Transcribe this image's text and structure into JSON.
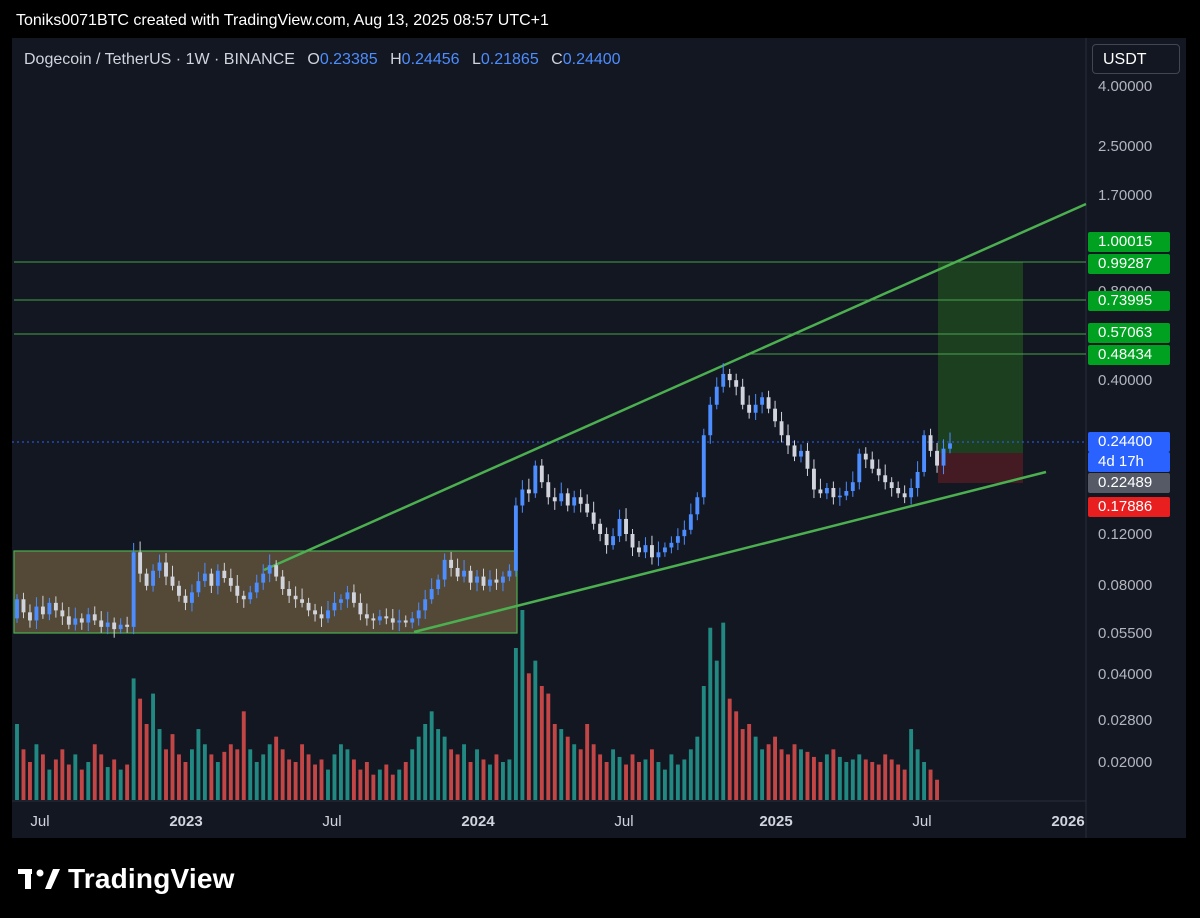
{
  "header": {
    "attribution": "Toniks0071BTC created with TradingView.com, Aug 13, 2025 08:57 UTC+1"
  },
  "legend": {
    "symbol": "Dogecoin / TetherUS · 1W · BINANCE",
    "open_label": "O",
    "open": "0.23385",
    "high_label": "H",
    "high": "0.24456",
    "low_label": "L",
    "low": "0.21865",
    "close_label": "C",
    "close": "0.24400"
  },
  "currency_button": "USDT",
  "brand": {
    "name": "TradingView"
  },
  "colors": {
    "up": "#4c8dff",
    "down": "#d1d4dc",
    "vol_up": "#26a69a",
    "vol_down": "#ef5350",
    "trend": "#4caf50",
    "range_box": "#6b5a3e",
    "target_zone": "#1e4620",
    "stop_zone": "#4a1c24"
  },
  "price_tags": [
    {
      "text": "1.00015",
      "color": "#00a020"
    },
    {
      "text": "0.99287",
      "color": "#00a020"
    },
    {
      "text": "0.73995",
      "color": "#00a020"
    },
    {
      "text": "0.57063",
      "color": "#00a020"
    },
    {
      "text": "0.48434",
      "color": "#00a020"
    },
    {
      "text": "0.24400",
      "color": "#2962ff"
    },
    {
      "text": "4d 17h",
      "color": "#2962ff"
    },
    {
      "text": "0.22489",
      "color": "#555a66"
    },
    {
      "text": "0.17886",
      "color": "#e91e1e"
    }
  ],
  "chart_data": {
    "type": "candlestick",
    "scale": "log",
    "timeframe": "1W",
    "y_tick_labels": [
      "4.00000",
      "2.50000",
      "1.70000",
      "0.80000",
      "0.40000",
      "0.12000",
      "0.08000",
      "0.05500",
      "0.04000",
      "0.02800",
      "0.02000"
    ],
    "x_tick_labels": [
      "Jul",
      "2023",
      "Jul",
      "2024",
      "Jul",
      "2025",
      "Jul",
      "2026"
    ],
    "horizontal_levels": [
      0.99287,
      0.73995,
      0.57063,
      0.48434
    ],
    "current_price": 0.244,
    "entry": 0.22489,
    "stop_loss": 0.17886,
    "target": 0.99287,
    "trendlines": [
      {
        "name": "upper",
        "from": [
          0.092,
          "2023-05"
        ],
        "to": [
          1.6,
          "2026-01"
        ]
      },
      {
        "name": "lower",
        "from": [
          0.056,
          "2023-10"
        ],
        "to": [
          0.2,
          "2025-10"
        ]
      }
    ],
    "range_box": {
      "from": "2022-06",
      "to": "2024-02",
      "high": 0.107,
      "low": 0.056
    },
    "price_path": [
      [
        0.062,
        0.072
      ],
      [
        0.072,
        0.065
      ],
      [
        0.065,
        0.061
      ],
      [
        0.061,
        0.068
      ],
      [
        0.068,
        0.064
      ],
      [
        0.064,
        0.07
      ],
      [
        0.07,
        0.066
      ],
      [
        0.066,
        0.063
      ],
      [
        0.063,
        0.059
      ],
      [
        0.059,
        0.062
      ],
      [
        0.062,
        0.06
      ],
      [
        0.06,
        0.064
      ],
      [
        0.064,
        0.061
      ],
      [
        0.061,
        0.058
      ],
      [
        0.058,
        0.06
      ],
      [
        0.06,
        0.057
      ],
      [
        0.057,
        0.059
      ],
      [
        0.059,
        0.058
      ],
      [
        0.058,
        0.104
      ],
      [
        0.104,
        0.088
      ],
      [
        0.088,
        0.08
      ],
      [
        0.08,
        0.09
      ],
      [
        0.09,
        0.096
      ],
      [
        0.096,
        0.086
      ],
      [
        0.086,
        0.08
      ],
      [
        0.08,
        0.074
      ],
      [
        0.074,
        0.07
      ],
      [
        0.07,
        0.076
      ],
      [
        0.076,
        0.083
      ],
      [
        0.083,
        0.088
      ],
      [
        0.088,
        0.08
      ],
      [
        0.08,
        0.09
      ],
      [
        0.09,
        0.085
      ],
      [
        0.085,
        0.08
      ],
      [
        0.08,
        0.074
      ],
      [
        0.074,
        0.072
      ],
      [
        0.072,
        0.076
      ],
      [
        0.076,
        0.082
      ],
      [
        0.082,
        0.088
      ],
      [
        0.088,
        0.094
      ],
      [
        0.094,
        0.086
      ],
      [
        0.086,
        0.078
      ],
      [
        0.078,
        0.074
      ],
      [
        0.074,
        0.072
      ],
      [
        0.072,
        0.07
      ],
      [
        0.07,
        0.066
      ],
      [
        0.066,
        0.064
      ],
      [
        0.064,
        0.062
      ],
      [
        0.062,
        0.066
      ],
      [
        0.066,
        0.07
      ],
      [
        0.07,
        0.072
      ],
      [
        0.072,
        0.076
      ],
      [
        0.076,
        0.07
      ],
      [
        0.07,
        0.064
      ],
      [
        0.064,
        0.062
      ],
      [
        0.062,
        0.061
      ],
      [
        0.061,
        0.063
      ],
      [
        0.063,
        0.062
      ],
      [
        0.062,
        0.06
      ],
      [
        0.06,
        0.061
      ],
      [
        0.061,
        0.06
      ],
      [
        0.06,
        0.062
      ],
      [
        0.062,
        0.066
      ],
      [
        0.066,
        0.072
      ],
      [
        0.072,
        0.078
      ],
      [
        0.078,
        0.084
      ],
      [
        0.084,
        0.098
      ],
      [
        0.098,
        0.092
      ],
      [
        0.092,
        0.086
      ],
      [
        0.086,
        0.09
      ],
      [
        0.09,
        0.082
      ],
      [
        0.082,
        0.086
      ],
      [
        0.086,
        0.08
      ],
      [
        0.08,
        0.084
      ],
      [
        0.084,
        0.082
      ],
      [
        0.082,
        0.086
      ],
      [
        0.086,
        0.09
      ],
      [
        0.09,
        0.15
      ],
      [
        0.15,
        0.17
      ],
      [
        0.17,
        0.165
      ],
      [
        0.165,
        0.205
      ],
      [
        0.205,
        0.18
      ],
      [
        0.18,
        0.16
      ],
      [
        0.16,
        0.155
      ],
      [
        0.155,
        0.165
      ],
      [
        0.165,
        0.15
      ],
      [
        0.15,
        0.16
      ],
      [
        0.16,
        0.152
      ],
      [
        0.152,
        0.142
      ],
      [
        0.142,
        0.13
      ],
      [
        0.13,
        0.12
      ],
      [
        0.12,
        0.11
      ],
      [
        0.11,
        0.118
      ],
      [
        0.118,
        0.135
      ],
      [
        0.135,
        0.12
      ],
      [
        0.12,
        0.108
      ],
      [
        0.108,
        0.104
      ],
      [
        0.104,
        0.11
      ],
      [
        0.11,
        0.1
      ],
      [
        0.1,
        0.104
      ],
      [
        0.104,
        0.108
      ],
      [
        0.108,
        0.112
      ],
      [
        0.112,
        0.118
      ],
      [
        0.118,
        0.124
      ],
      [
        0.124,
        0.14
      ],
      [
        0.14,
        0.16
      ],
      [
        0.16,
        0.26
      ],
      [
        0.26,
        0.33
      ],
      [
        0.33,
        0.38
      ],
      [
        0.38,
        0.42
      ],
      [
        0.42,
        0.4
      ],
      [
        0.4,
        0.38
      ],
      [
        0.38,
        0.33
      ],
      [
        0.33,
        0.31
      ],
      [
        0.31,
        0.33
      ],
      [
        0.33,
        0.35
      ],
      [
        0.35,
        0.32
      ],
      [
        0.32,
        0.29
      ],
      [
        0.29,
        0.26
      ],
      [
        0.26,
        0.24
      ],
      [
        0.24,
        0.22
      ],
      [
        0.22,
        0.23
      ],
      [
        0.23,
        0.2
      ],
      [
        0.2,
        0.17
      ],
      [
        0.17,
        0.165
      ],
      [
        0.165,
        0.172
      ],
      [
        0.172,
        0.16
      ],
      [
        0.16,
        0.162
      ],
      [
        0.162,
        0.168
      ],
      [
        0.168,
        0.18
      ],
      [
        0.18,
        0.225
      ],
      [
        0.225,
        0.215
      ],
      [
        0.215,
        0.2
      ],
      [
        0.2,
        0.19
      ],
      [
        0.19,
        0.18
      ],
      [
        0.18,
        0.172
      ],
      [
        0.172,
        0.165
      ],
      [
        0.165,
        0.16
      ],
      [
        0.16,
        0.172
      ],
      [
        0.172,
        0.195
      ],
      [
        0.195,
        0.26
      ],
      [
        0.26,
        0.23
      ],
      [
        0.23,
        0.205
      ],
      [
        0.205,
        0.234
      ],
      [
        0.234,
        0.244
      ]
    ],
    "volume_path": [
      0.3,
      0.2,
      0.15,
      0.22,
      0.18,
      0.12,
      0.16,
      0.2,
      0.14,
      0.18,
      0.12,
      0.15,
      0.22,
      0.18,
      0.13,
      0.16,
      0.12,
      0.14,
      0.48,
      0.4,
      0.3,
      0.42,
      0.28,
      0.2,
      0.26,
      0.18,
      0.15,
      0.2,
      0.28,
      0.22,
      0.18,
      0.15,
      0.19,
      0.22,
      0.2,
      0.35,
      0.2,
      0.15,
      0.18,
      0.22,
      0.25,
      0.2,
      0.16,
      0.15,
      0.22,
      0.18,
      0.14,
      0.16,
      0.12,
      0.18,
      0.22,
      0.2,
      0.16,
      0.12,
      0.15,
      0.1,
      0.12,
      0.14,
      0.1,
      0.12,
      0.15,
      0.2,
      0.25,
      0.3,
      0.35,
      0.28,
      0.25,
      0.2,
      0.18,
      0.22,
      0.15,
      0.2,
      0.16,
      0.14,
      0.18,
      0.15,
      0.16,
      0.6,
      0.75,
      0.5,
      0.55,
      0.45,
      0.42,
      0.3,
      0.28,
      0.25,
      0.22,
      0.2,
      0.3,
      0.22,
      0.18,
      0.15,
      0.2,
      0.17,
      0.14,
      0.18,
      0.15,
      0.16,
      0.2,
      0.15,
      0.12,
      0.18,
      0.14,
      0.16,
      0.2,
      0.25,
      0.45,
      0.68,
      0.55,
      0.7,
      0.4,
      0.35,
      0.28,
      0.3,
      0.25,
      0.2,
      0.22,
      0.25,
      0.2,
      0.18,
      0.22,
      0.2,
      0.19,
      0.17,
      0.15,
      0.18,
      0.2,
      0.17,
      0.15,
      0.16,
      0.18,
      0.16,
      0.15,
      0.14,
      0.18,
      0.16,
      0.14,
      0.12,
      0.28,
      0.2,
      0.15,
      0.12,
      0.08
    ]
  }
}
